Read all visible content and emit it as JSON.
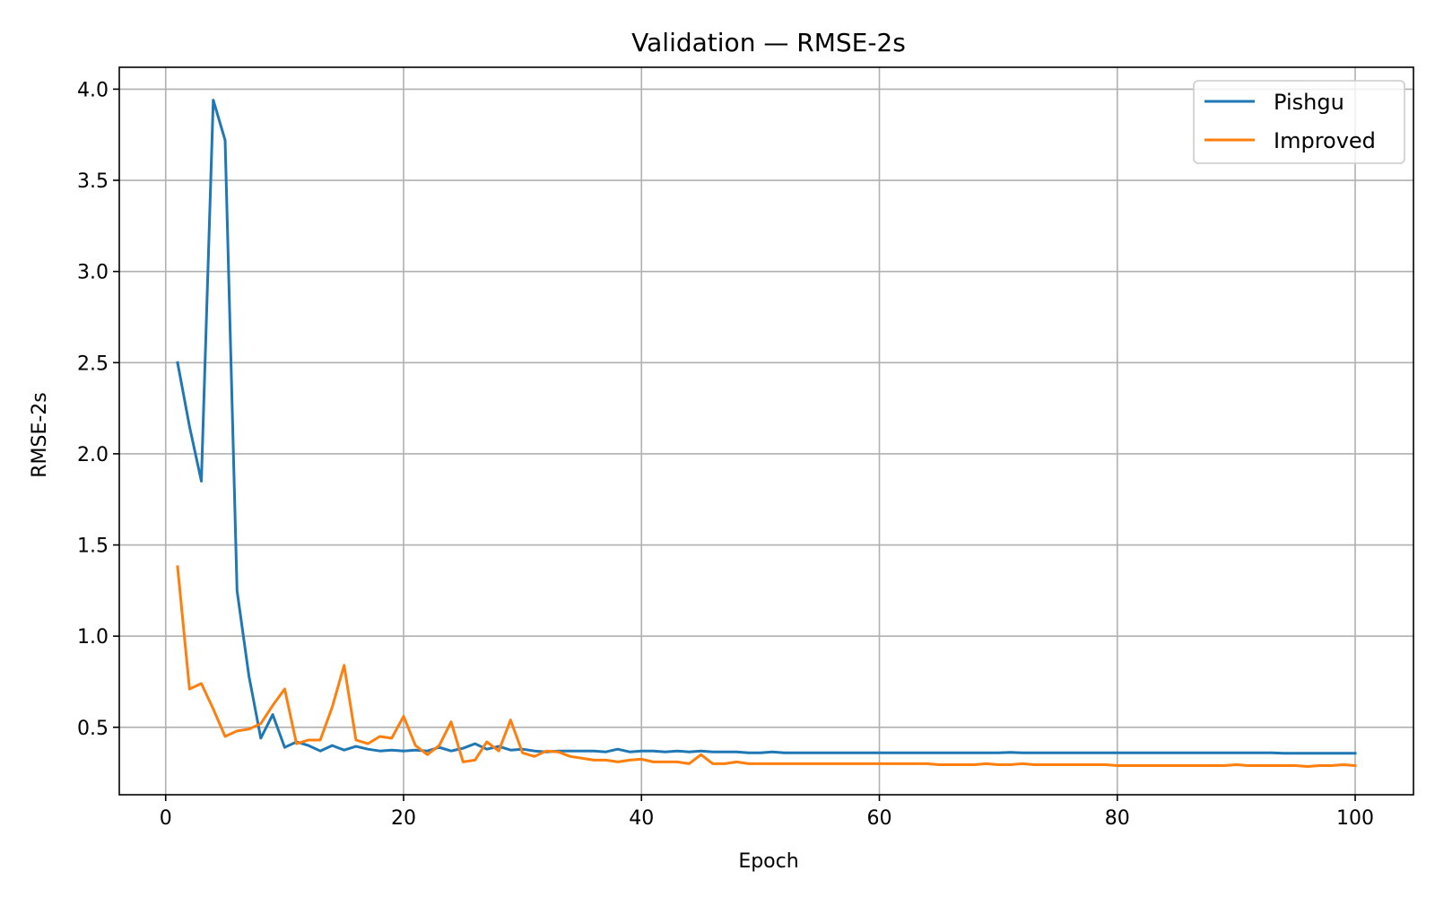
{
  "chart_data": {
    "type": "line",
    "title": "Validation — RMSE-2s",
    "xlabel": "Epoch",
    "ylabel": "RMSE-2s",
    "xlim": [
      -3.9,
      104.9
    ],
    "ylim": [
      0.13,
      4.12
    ],
    "xticks": [
      0,
      20,
      40,
      60,
      80,
      100
    ],
    "xtick_labels": [
      "0",
      "20",
      "40",
      "60",
      "80",
      "100"
    ],
    "yticks": [
      0.5,
      1.0,
      1.5,
      2.0,
      2.5,
      3.0,
      3.5,
      4.0
    ],
    "ytick_labels": [
      "0.5",
      "1.0",
      "1.5",
      "2.0",
      "2.5",
      "3.0",
      "3.5",
      "4.0"
    ],
    "grid": true,
    "legend_position": "top-right",
    "x_start": 1,
    "series": [
      {
        "name": "Pishgu",
        "color": "#1f77b4",
        "values": [
          2.5,
          2.15,
          1.85,
          3.94,
          3.72,
          1.25,
          0.78,
          0.44,
          0.57,
          0.39,
          0.42,
          0.4,
          0.37,
          0.4,
          0.375,
          0.395,
          0.38,
          0.37,
          0.375,
          0.37,
          0.375,
          0.37,
          0.39,
          0.37,
          0.385,
          0.41,
          0.38,
          0.395,
          0.375,
          0.38,
          0.37,
          0.365,
          0.37,
          0.37,
          0.37,
          0.37,
          0.365,
          0.38,
          0.365,
          0.37,
          0.37,
          0.365,
          0.37,
          0.365,
          0.37,
          0.365,
          0.365,
          0.365,
          0.36,
          0.36,
          0.365,
          0.36,
          0.36,
          0.36,
          0.36,
          0.36,
          0.36,
          0.36,
          0.36,
          0.36,
          0.36,
          0.36,
          0.36,
          0.36,
          0.36,
          0.36,
          0.36,
          0.36,
          0.36,
          0.36,
          0.362,
          0.36,
          0.36,
          0.36,
          0.36,
          0.36,
          0.36,
          0.36,
          0.36,
          0.36,
          0.36,
          0.36,
          0.36,
          0.36,
          0.36,
          0.36,
          0.36,
          0.36,
          0.36,
          0.36,
          0.36,
          0.36,
          0.36,
          0.358,
          0.358,
          0.358,
          0.358,
          0.358,
          0.358,
          0.358
        ]
      },
      {
        "name": "Improved",
        "color": "#ff7f0e",
        "values": [
          1.38,
          0.71,
          0.74,
          0.6,
          0.45,
          0.48,
          0.49,
          0.52,
          0.62,
          0.71,
          0.41,
          0.43,
          0.43,
          0.61,
          0.84,
          0.43,
          0.41,
          0.45,
          0.44,
          0.56,
          0.4,
          0.35,
          0.4,
          0.53,
          0.31,
          0.32,
          0.42,
          0.37,
          0.54,
          0.36,
          0.34,
          0.37,
          0.365,
          0.34,
          0.33,
          0.32,
          0.32,
          0.31,
          0.32,
          0.325,
          0.31,
          0.31,
          0.31,
          0.3,
          0.35,
          0.3,
          0.3,
          0.31,
          0.3,
          0.3,
          0.3,
          0.3,
          0.3,
          0.3,
          0.3,
          0.3,
          0.3,
          0.3,
          0.3,
          0.3,
          0.3,
          0.3,
          0.3,
          0.3,
          0.295,
          0.295,
          0.295,
          0.295,
          0.3,
          0.295,
          0.295,
          0.3,
          0.295,
          0.295,
          0.295,
          0.295,
          0.295,
          0.295,
          0.295,
          0.29,
          0.29,
          0.29,
          0.29,
          0.29,
          0.29,
          0.29,
          0.29,
          0.29,
          0.29,
          0.295,
          0.29,
          0.29,
          0.29,
          0.29,
          0.29,
          0.285,
          0.29,
          0.29,
          0.295,
          0.29
        ]
      }
    ]
  }
}
